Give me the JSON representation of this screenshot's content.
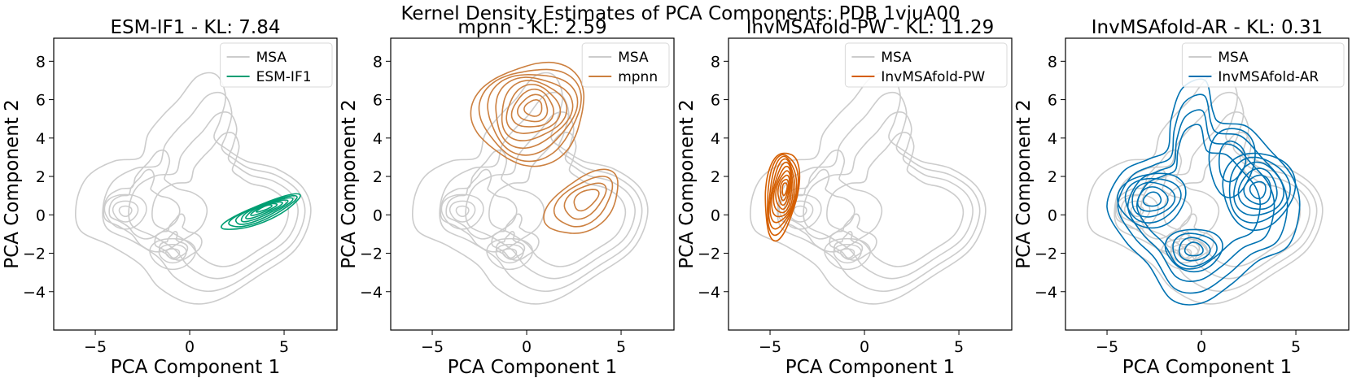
{
  "figure": {
    "suptitle": "Kernel Density Estimates of PCA Components: PDB 1viuA00"
  },
  "colors": {
    "msa": "#cccccc",
    "esm": "#009e73",
    "mpnn": "#cc8040",
    "pw": "#d55e00",
    "ar": "#0072b2"
  },
  "chart_data": [
    {
      "type": "contour",
      "title": "ESM-IF1 - KL: 7.84",
      "xlabel": "PCA Component 1",
      "ylabel": "PCA Component 2",
      "xlim": [
        -7.2,
        7.8
      ],
      "ylim": [
        -6,
        9.2
      ],
      "xticks": [
        -5,
        0,
        5
      ],
      "xtick_labels": [
        "−5",
        "0",
        "5"
      ],
      "yticks": [
        -4,
        -2,
        0,
        2,
        4,
        6,
        8
      ],
      "ytick_labels": [
        "−4",
        "−2",
        "0",
        "2",
        "4",
        "6",
        "8"
      ],
      "legend": [
        "MSA",
        "ESM-IF1"
      ],
      "legend_loc": "upper right",
      "series": [
        {
          "name": "MSA",
          "color": "msa",
          "kind": "msa"
        },
        {
          "name": "ESM-IF1",
          "color": "esm",
          "kind": "cluster",
          "clusters": [
            {
              "cx": 3.8,
              "cy": 0.1,
              "rx": 2.2,
              "ry": 0.45,
              "angle": 22,
              "levels": 7
            }
          ]
        }
      ]
    },
    {
      "type": "contour",
      "title": "mpnn - KL: 2.59",
      "xlabel": "PCA Component 1",
      "ylabel": "PCA Component 2",
      "xlim": [
        -7.2,
        7.8
      ],
      "ylim": [
        -6,
        9.2
      ],
      "xticks": [
        -5,
        0,
        5
      ],
      "xtick_labels": [
        "−5",
        "0",
        "5"
      ],
      "yticks": [
        -4,
        -2,
        0,
        2,
        4,
        6,
        8
      ],
      "ytick_labels": [
        "−4",
        "−2",
        "0",
        "2",
        "4",
        "6",
        "8"
      ],
      "legend": [
        "MSA",
        "mpnn"
      ],
      "legend_loc": "upper right",
      "series": [
        {
          "name": "MSA",
          "color": "msa",
          "kind": "msa"
        },
        {
          "name": "mpnn",
          "color": "mpnn",
          "kind": "cluster",
          "clusters": [
            {
              "cx": 0.2,
              "cy": 5.3,
              "rx": 3.0,
              "ry": 2.6,
              "angle": 20,
              "levels": 9
            },
            {
              "cx": 3.0,
              "cy": 0.6,
              "rx": 2.2,
              "ry": 1.3,
              "angle": 35,
              "levels": 4
            }
          ]
        }
      ]
    },
    {
      "type": "contour",
      "title": "InvMSAfold-PW - KL: 11.29",
      "xlabel": "PCA Component 1",
      "ylabel": "PCA Component 2",
      "xlim": [
        -7.2,
        7.8
      ],
      "ylim": [
        -6,
        9.2
      ],
      "xticks": [
        -5,
        0,
        5
      ],
      "xtick_labels": [
        "−5",
        "0",
        "5"
      ],
      "yticks": [
        -4,
        -2,
        0,
        2,
        4,
        6,
        8
      ],
      "ytick_labels": [
        "−4",
        "−2",
        "0",
        "2",
        "4",
        "6",
        "8"
      ],
      "legend": [
        "MSA",
        "InvMSAfold-PW"
      ],
      "legend_loc": "upper right",
      "series": [
        {
          "name": "MSA",
          "color": "msa",
          "kind": "msa"
        },
        {
          "name": "InvMSAfold-PW",
          "color": "pw",
          "kind": "cluster",
          "clusters": [
            {
              "cx": -4.4,
              "cy": 1.1,
              "rx": 0.85,
              "ry": 2.3,
              "angle": -8,
              "levels": 10
            }
          ]
        }
      ]
    },
    {
      "type": "contour",
      "title": "InvMSAfold-AR - KL: 0.31",
      "xlabel": "PCA Component 1",
      "ylabel": "PCA Component 2",
      "xlim": [
        -7.2,
        7.8
      ],
      "ylim": [
        -6,
        9.2
      ],
      "xticks": [
        -5,
        0,
        5
      ],
      "xtick_labels": [
        "−5",
        "0",
        "5"
      ],
      "yticks": [
        -4,
        -2,
        0,
        2,
        4,
        6,
        8
      ],
      "ytick_labels": [
        "−4",
        "−2",
        "0",
        "2",
        "4",
        "6",
        "8"
      ],
      "legend": [
        "MSA",
        "InvMSAfold-AR"
      ],
      "legend_loc": "upper right",
      "series": [
        {
          "name": "MSA",
          "color": "msa",
          "kind": "msa"
        },
        {
          "name": "InvMSAfold-AR",
          "color": "ar",
          "kind": "ar"
        }
      ]
    }
  ]
}
